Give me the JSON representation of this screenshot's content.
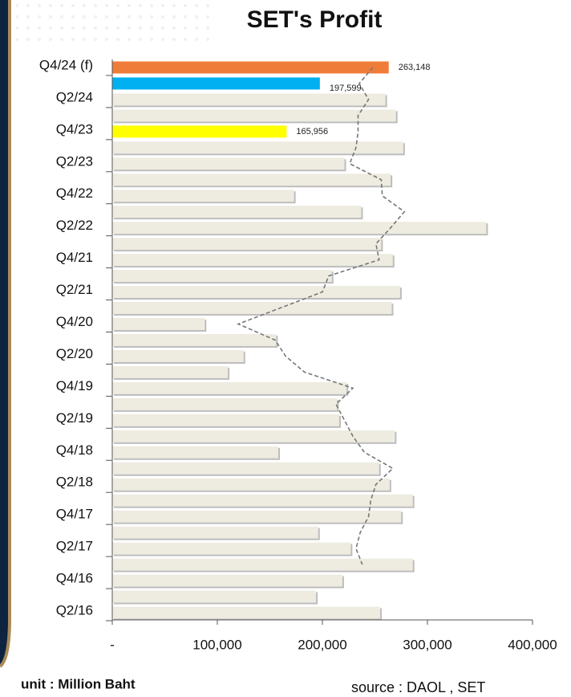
{
  "chart_data": {
    "type": "bar",
    "orientation": "horizontal",
    "title": "SET's Profit",
    "unit_note": "unit : Million Baht",
    "source_note": "source : DAOL , SET",
    "categories": [
      "Q4/24 (f)",
      null,
      "Q2/24",
      null,
      "Q4/23",
      null,
      "Q2/23",
      null,
      "Q4/22",
      null,
      "Q2/22",
      null,
      "Q4/21",
      null,
      "Q2/21",
      null,
      "Q4/20",
      null,
      "Q2/20",
      null,
      "Q4/19",
      null,
      "Q2/19",
      null,
      "Q4/18",
      null,
      "Q2/18",
      null,
      "Q4/17",
      null,
      "Q2/17",
      null,
      "Q4/16",
      null,
      "Q2/16"
    ],
    "values": [
      263148,
      197599,
      260000,
      270000,
      165956,
      277000,
      221000,
      265000,
      173000,
      237000,
      356000,
      256000,
      267000,
      209000,
      274000,
      266000,
      88000,
      156000,
      125000,
      110000,
      223000,
      214000,
      216000,
      269000,
      158000,
      254000,
      264000,
      286000,
      275000,
      196000,
      227000,
      286000,
      219000,
      194000,
      255000
    ],
    "value_labels": [
      "263,148",
      "197,599",
      null,
      null,
      "165,956",
      null,
      null,
      null,
      null,
      null,
      null,
      null,
      null,
      null,
      null,
      null,
      null,
      null,
      null,
      null,
      null,
      null,
      null,
      null,
      null,
      null,
      null,
      null,
      null,
      null,
      null,
      null,
      null,
      null,
      null
    ],
    "colors": [
      "#f07c3a",
      "#00b0f0",
      "#eeece1",
      "#eeece1",
      "#ffff00",
      "#eeece1",
      "#eeece1",
      "#eeece1",
      "#eeece1",
      "#eeece1",
      "#eeece1",
      "#eeece1",
      "#eeece1",
      "#eeece1",
      "#eeece1",
      "#eeece1",
      "#eeece1",
      "#eeece1",
      "#eeece1",
      "#eeece1",
      "#eeece1",
      "#eeece1",
      "#eeece1",
      "#eeece1",
      "#eeece1",
      "#eeece1",
      "#eeece1",
      "#eeece1",
      "#eeece1",
      "#eeece1",
      "#eeece1",
      "#eeece1",
      "#eeece1",
      "#eeece1",
      "#eeece1"
    ],
    "trend": {
      "color": "#777777",
      "values": [
        248000,
        235000,
        244000,
        234000,
        234000,
        232000,
        226000,
        256000,
        257000,
        278000,
        265000,
        251000,
        254000,
        206000,
        200000,
        160000,
        120000,
        155000,
        165000,
        183000,
        229000,
        213000,
        221000,
        229000,
        240000,
        267000,
        251000,
        246000,
        244000,
        236000,
        232000,
        238000,
        null,
        null,
        null
      ]
    },
    "xlim": [
      0,
      400000
    ],
    "xticks": [
      {
        "value": 0,
        "label": "-"
      },
      {
        "value": 100000,
        "label": "100,000"
      },
      {
        "value": 200000,
        "label": "200,000"
      },
      {
        "value": 300000,
        "label": "300,000"
      },
      {
        "value": 400000,
        "label": "400,000"
      }
    ]
  }
}
